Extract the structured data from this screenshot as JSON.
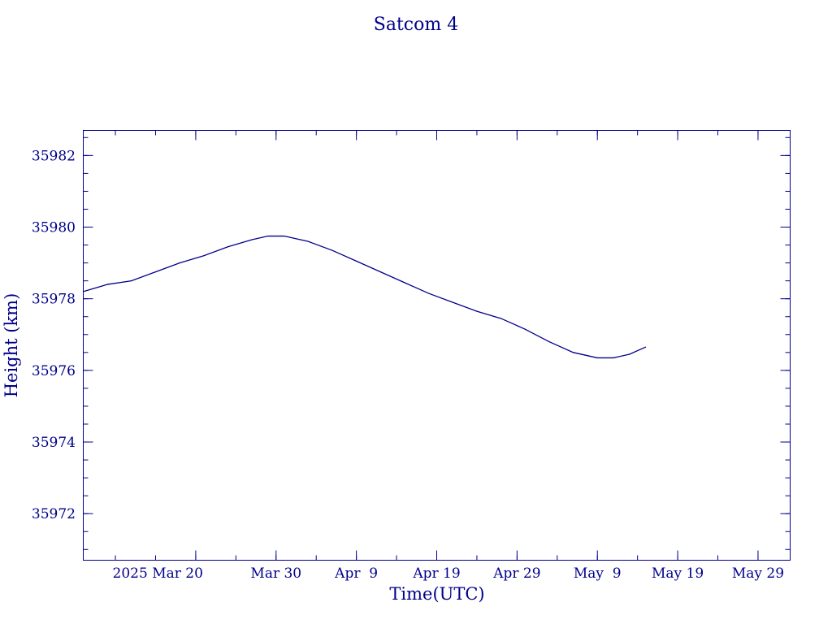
{
  "chart_data": {
    "type": "line",
    "title": "Satcom 4",
    "xlabel": "Time(UTC)",
    "ylabel": "Height (km)",
    "xlim": [
      "2025-03-06",
      "2025-06-02"
    ],
    "ylim": [
      35970.7,
      35982.7
    ],
    "grid": false,
    "x_ticks": [
      {
        "date": "2025-03-20",
        "label": "2025 Mar 20"
      },
      {
        "date": "2025-03-30",
        "label": "Mar 30"
      },
      {
        "date": "2025-04-09",
        "label": "Apr  9"
      },
      {
        "date": "2025-04-19",
        "label": "Apr 19"
      },
      {
        "date": "2025-04-29",
        "label": "Apr 29"
      },
      {
        "date": "2025-05-09",
        "label": "May  9"
      },
      {
        "date": "2025-05-19",
        "label": "May 19"
      },
      {
        "date": "2025-05-29",
        "label": "May 29"
      }
    ],
    "x_minor_tick_step_days": 5,
    "y_ticks": [
      {
        "value": 35972,
        "label": "35972"
      },
      {
        "value": 35974,
        "label": "35974"
      },
      {
        "value": 35976,
        "label": "35976"
      },
      {
        "value": 35978,
        "label": "35978"
      },
      {
        "value": 35980,
        "label": "35980"
      },
      {
        "value": 35982,
        "label": "35982"
      }
    ],
    "y_minor_tick_step": 0.5,
    "series": [
      {
        "color": "#00008b",
        "points": [
          {
            "x": "2025-03-06",
            "y": 35978.2
          },
          {
            "x": "2025-03-09",
            "y": 35978.4
          },
          {
            "x": "2025-03-12",
            "y": 35978.5
          },
          {
            "x": "2025-03-15",
            "y": 35978.75
          },
          {
            "x": "2025-03-18",
            "y": 35979.0
          },
          {
            "x": "2025-03-21",
            "y": 35979.2
          },
          {
            "x": "2025-03-24",
            "y": 35979.45
          },
          {
            "x": "2025-03-27",
            "y": 35979.65
          },
          {
            "x": "2025-03-29",
            "y": 35979.75
          },
          {
            "x": "2025-03-31",
            "y": 35979.75
          },
          {
            "x": "2025-04-03",
            "y": 35979.6
          },
          {
            "x": "2025-04-06",
            "y": 35979.35
          },
          {
            "x": "2025-04-09",
            "y": 35979.05
          },
          {
            "x": "2025-04-12",
            "y": 35978.75
          },
          {
            "x": "2025-04-15",
            "y": 35978.45
          },
          {
            "x": "2025-04-18",
            "y": 35978.15
          },
          {
            "x": "2025-04-21",
            "y": 35977.9
          },
          {
            "x": "2025-04-24",
            "y": 35977.65
          },
          {
            "x": "2025-04-27",
            "y": 35977.45
          },
          {
            "x": "2025-04-30",
            "y": 35977.15
          },
          {
            "x": "2025-05-03",
            "y": 35976.8
          },
          {
            "x": "2025-05-06",
            "y": 35976.5
          },
          {
            "x": "2025-05-09",
            "y": 35976.35
          },
          {
            "x": "2025-05-11",
            "y": 35976.35
          },
          {
            "x": "2025-05-13",
            "y": 35976.45
          },
          {
            "x": "2025-05-15",
            "y": 35976.65
          }
        ]
      }
    ]
  }
}
